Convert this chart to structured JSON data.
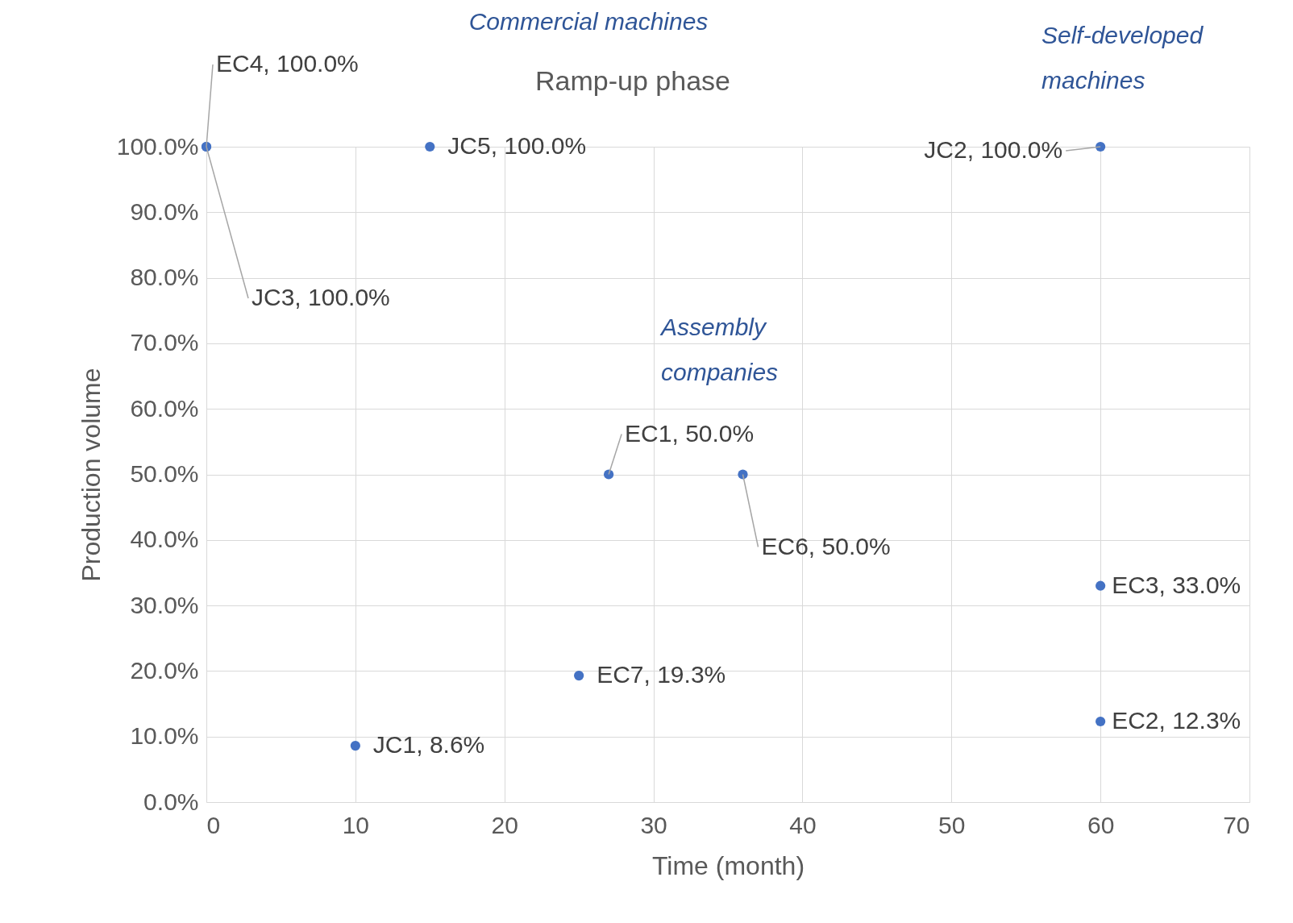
{
  "chart_data": {
    "type": "scatter",
    "title": "Ramp-up phase",
    "xlabel": "Time (month)",
    "ylabel": "Production volume",
    "x": [
      0,
      0,
      15,
      10,
      27,
      36,
      25,
      60,
      60,
      60
    ],
    "series": [
      {
        "color": "#4472c4",
        "values": [
          100,
          100,
          100,
          8.6,
          50,
          50,
          19.3,
          100,
          33,
          12.3
        ],
        "value_labels": [
          "EC4, 100.0%",
          "JC3, 100.0%",
          "JC5, 100.0%",
          "JC1, 8.6%",
          "EC1, 50.0%",
          "EC6, 50.0%",
          "EC7, 19.3%",
          "JC2, 100.0%",
          "EC3, 33.0%",
          "EC2, 12.3%"
        ]
      }
    ],
    "xlim": [
      0,
      70
    ],
    "xticks": [
      0,
      10,
      20,
      30,
      40,
      50,
      60,
      70
    ],
    "ylim": [
      0,
      100
    ],
    "yticks": [
      {
        "value": 0,
        "label": "0.0%"
      },
      {
        "value": 10,
        "label": "10.0%"
      },
      {
        "value": 20,
        "label": "20.0%"
      },
      {
        "value": 30,
        "label": "30.0%"
      },
      {
        "value": 40,
        "label": "40.0%"
      },
      {
        "value": 50,
        "label": "50.0%"
      },
      {
        "value": 60,
        "label": "60.0%"
      },
      {
        "value": 70,
        "label": "70.0%"
      },
      {
        "value": 80,
        "label": "80.0%"
      },
      {
        "value": 90,
        "label": "90.0%"
      },
      {
        "value": 100,
        "label": "100.0%"
      }
    ],
    "annotations": [
      "Commercial machines",
      "Assembly companies",
      "Self-developed machines"
    ],
    "grid": true,
    "marker": "circle"
  }
}
